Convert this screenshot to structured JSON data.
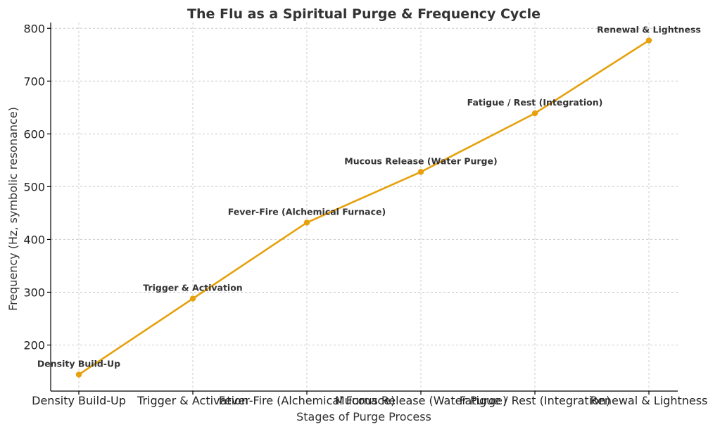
{
  "chart_data": {
    "type": "line",
    "title": "The Flu as a Spiritual Purge & Frequency Cycle",
    "xlabel": "Stages of Purge Process",
    "ylabel": "Frequency (Hz, symbolic resonance)",
    "categories": [
      "Density Build-Up",
      "Trigger & Activation",
      "Fever-Fire (Alchemical Furnace)",
      "Mucous Release (Water Purge)",
      "Fatigue / Rest (Integration)",
      "Renewal & Lightness"
    ],
    "values": [
      144,
      288,
      432,
      528,
      639,
      777
    ],
    "yticks": [
      200,
      300,
      400,
      500,
      600,
      700,
      800
    ],
    "ylim": [
      130,
      820
    ],
    "grid": true,
    "line_color": "#e6a10c"
  }
}
